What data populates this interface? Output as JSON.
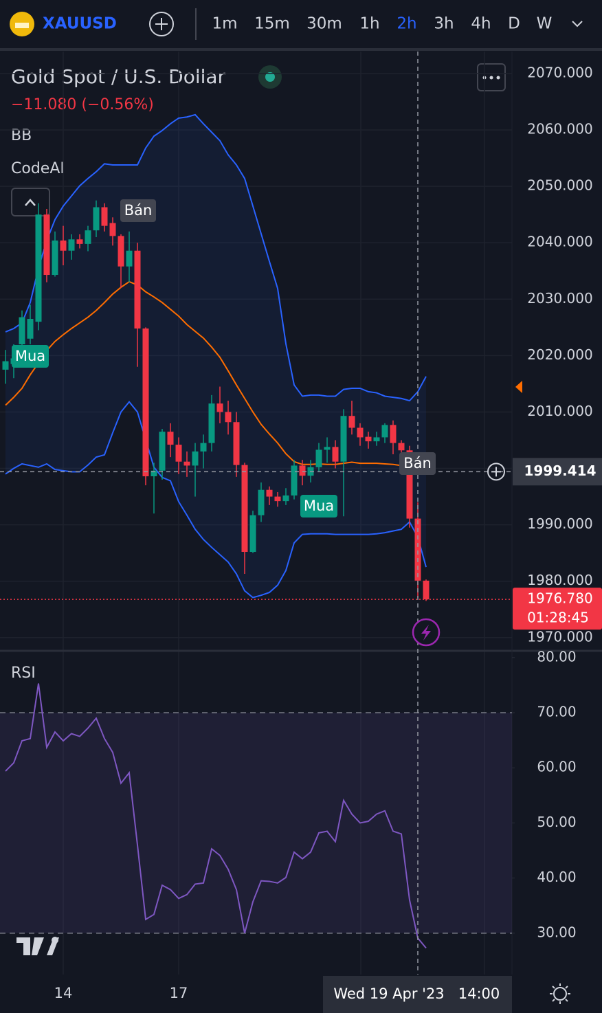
{
  "toolbar": {
    "symbol": "XAUUSD",
    "intervals": [
      "1m",
      "15m",
      "30m",
      "1h",
      "2h",
      "3h",
      "4h",
      "D",
      "W"
    ],
    "active_interval": "2h"
  },
  "legend": {
    "title": "Gold Spot / U.S. Dollar",
    "change": "−11.080 (−0.56%)",
    "indicators": [
      "BB",
      "CodeAI"
    ]
  },
  "signals": [
    "Bán",
    "Mua",
    "Mua",
    "Bán"
  ],
  "time_axis": {
    "ticks": [
      "14",
      "17"
    ],
    "crosshair_label": "Wed 19 Apr '23",
    "next_label": "14:00"
  },
  "chart_data": [
    {
      "type": "candlestick",
      "open": [
        2017.5,
        2018.5,
        2022.0,
        2023.0,
        2026.0,
        2045.0,
        2034.3,
        2040.4,
        2038.6,
        2040.6,
        2039.8,
        2042.2,
        2046.3,
        2043.5,
        2041.2,
        2035.8,
        2038.6,
        2024.8,
        1998.6,
        1999.6,
        2006.5,
        2004.2,
        2001.2,
        2000.5,
        2003.0,
        2004.5,
        2011.5,
        2010.0,
        2008.2,
        2000.6,
        1985.2,
        1991.7,
        1996.2,
        1995.0,
        1994.2,
        1995.2,
        2000.5,
        1998.7,
        2000.2,
        2003.3,
        2003.8,
        2001.2,
        2009.3,
        2007.2,
        2005.6,
        2004.8,
        2005.5,
        2007.7,
        2004.5,
        2003.2,
        1991.1,
        1980.1
      ],
      "high": [
        2021,
        2022,
        2028,
        2029,
        2047,
        2046,
        2042,
        2043,
        2041.5,
        2041.5,
        2043,
        2047.5,
        2047,
        2044.5,
        2041.5,
        2042,
        2040,
        2025,
        2001,
        2007,
        2008,
        2005.5,
        2003,
        2004.5,
        2006,
        2013,
        2014.5,
        2012,
        2010,
        2001,
        1992.5,
        1997.5,
        1996.8,
        1995.8,
        1996.5,
        2001.5,
        2001.5,
        2001.5,
        2004.5,
        2005.5,
        2005,
        2010.5,
        2012,
        2008,
        2006.5,
        2006.5,
        2008,
        2008.5,
        2005,
        2004,
        1994,
        1980.3
      ],
      "low": [
        2015,
        2016,
        2021,
        2022,
        2024.5,
        2033,
        2034,
        2036,
        2037,
        2039,
        2038.5,
        2041,
        2042,
        2039.5,
        2032,
        2033,
        2018,
        1997,
        1992,
        1998,
        2002,
        1999,
        1998.5,
        1995,
        2000,
        2003,
        2008,
        2006,
        1998.5,
        1981.3,
        1985,
        1990.5,
        1993.5,
        1993.2,
        1993.5,
        1994.5,
        1997,
        1997.5,
        1999.5,
        2001,
        2000,
        1991.5,
        2006,
        2004,
        2003.5,
        2004,
        2004.5,
        2002.5,
        2001.5,
        1989.5,
        1977,
        1976.5
      ],
      "close": [
        2019.0,
        2019.5,
        2026.8,
        2026.5,
        2045.0,
        2034.3,
        2040.4,
        2038.6,
        2040.6,
        2039.8,
        2042.2,
        2046.3,
        2043.0,
        2041.2,
        2035.8,
        2038.6,
        2024.8,
        1998.6,
        1999.6,
        2006.5,
        2004.2,
        2001.2,
        2000.5,
        2003.0,
        2004.5,
        2011.5,
        2010.0,
        2008.2,
        2000.6,
        1985.2,
        1991.7,
        1996.2,
        1995.0,
        1994.2,
        1995.2,
        2000.5,
        1998.7,
        2000.2,
        2003.3,
        2003.8,
        2001.2,
        2009.3,
        2007.2,
        2005.5,
        2004.8,
        2005.5,
        2007.7,
        2004.5,
        2003.2,
        1991.1,
        1980.1,
        1976.78
      ],
      "up_color": "#089981",
      "down_color": "#f23645",
      "overlays": [
        {
          "color": "#2962ff",
          "values": [
            2024.2,
            2024.8,
            2025.8,
            2029.4,
            2035.5,
            2040.4,
            2044.1,
            2046.5,
            2048.3,
            2050.1,
            2051.4,
            2052.6,
            2054.0,
            2053.8,
            2053.8,
            2053.8,
            2053.8,
            2056.8,
            2058.9,
            2059.9,
            2061.1,
            2062.1,
            2062.3,
            2062.7,
            2061.1,
            2059.6,
            2058.1,
            2055.6,
            2053.8,
            2051.4,
            2046.5,
            2041.6,
            2036.7,
            2031.9,
            2022.1,
            2014.8,
            2012.8,
            2013.0,
            2013.0,
            2012.8,
            2012.8,
            2014.0,
            2014.2,
            2014.2,
            2013.6,
            2013.4,
            2012.8,
            2012.6,
            2012.4,
            2012.0,
            2013.6,
            2016.3
          ]
        },
        {
          "color": "#ff6d00",
          "values": [
            2011.2,
            2012.6,
            2014.2,
            2016.6,
            2018.7,
            2020.9,
            2022.5,
            2023.7,
            2024.8,
            2025.8,
            2026.8,
            2028.0,
            2029.4,
            2030.9,
            2032.1,
            2033.1,
            2032.5,
            2031.3,
            2030.4,
            2029.4,
            2028.2,
            2027.0,
            2025.5,
            2024.3,
            2023.1,
            2021.5,
            2019.7,
            2017.3,
            2014.8,
            2012.4,
            2010.0,
            2007.8,
            2006.1,
            2004.5,
            2002.6,
            2001.2,
            2000.7,
            2000.7,
            2000.8,
            2000.7,
            2000.7,
            2000.9,
            2001.1,
            2000.9,
            2000.9,
            2000.9,
            2000.8,
            2000.7,
            2000.5,
            2000.5,
            2000.3,
            1999.7
          ]
        },
        {
          "color": "#2962ff",
          "values": [
            1999.0,
            2000.0,
            2000.8,
            2000.5,
            2000.2,
            2000.8,
            1999.8,
            1999.6,
            1999.4,
            1999.4,
            2000.6,
            2002.0,
            2002.4,
            2006.3,
            2010.0,
            2011.8,
            2010.0,
            2005.1,
            2000.2,
            1998.4,
            1997.8,
            1994.1,
            1991.7,
            1989.2,
            1987.4,
            1986.0,
            1984.7,
            1983.4,
            1981.3,
            1978.3,
            1977.1,
            1977.5,
            1978.0,
            1979.3,
            1981.9,
            1986.8,
            1988.3,
            1988.4,
            1988.4,
            1988.4,
            1988.3,
            1988.3,
            1988.3,
            1988.3,
            1988.3,
            1988.4,
            1988.6,
            1988.9,
            1989.2,
            1990.5,
            1987.8,
            1982.5
          ]
        }
      ],
      "band_fill": "rgba(41,98,255,0.08)",
      "ylim": [
        1967.9,
        2073.9
      ],
      "yticks": [
        {
          "value": 1970,
          "label": "1970.000"
        },
        {
          "value": 1980,
          "label": "1980.000"
        },
        {
          "value": 1990,
          "label": "1990.000"
        },
        {
          "value": 2000,
          "label": "2000.000"
        },
        {
          "value": 2010,
          "label": "2010.000"
        },
        {
          "value": 2020,
          "label": "2020.000"
        },
        {
          "value": 2030,
          "label": "2030.000"
        },
        {
          "value": 2040,
          "label": "2040.000"
        },
        {
          "value": 2050,
          "label": "2050.000"
        },
        {
          "value": 2060,
          "label": "2060.000"
        },
        {
          "value": 2070,
          "label": "2070.000"
        }
      ],
      "last_price": {
        "value": 1976.78,
        "label": "1976.780"
      },
      "countdown": "01:28:45",
      "crosshair_price": {
        "value": 1999.414,
        "label": "1999.414"
      },
      "grid": true
    },
    {
      "type": "line",
      "title": "RSI",
      "color": "#7e57c2",
      "values": [
        59.4,
        60.9,
        64.9,
        65.3,
        75.3,
        63.7,
        66.5,
        64.9,
        66.2,
        65.7,
        67.2,
        69.0,
        65.3,
        62.8,
        57.2,
        59.1,
        46.0,
        32.5,
        33.4,
        38.7,
        37.9,
        36.3,
        37.0,
        38.9,
        39.1,
        45.3,
        44.1,
        41.6,
        37.9,
        30.0,
        35.7,
        39.5,
        39.4,
        39.1,
        40.1,
        44.7,
        43.5,
        44.7,
        48.2,
        48.5,
        46.6,
        54.1,
        51.6,
        50.0,
        50.3,
        51.6,
        52.2,
        48.5,
        48.0,
        36.0,
        29.1,
        27.3
      ],
      "ylim": [
        22.5,
        81.1
      ],
      "yticks": [
        {
          "value": 30,
          "label": "30.00"
        },
        {
          "value": 40,
          "label": "40.00"
        },
        {
          "value": 50,
          "label": "50.00"
        },
        {
          "value": 60,
          "label": "60.00"
        },
        {
          "value": 70,
          "label": "70.00"
        },
        {
          "value": 80,
          "label": "80.00"
        }
      ],
      "band": [
        30,
        70
      ],
      "band_color": "rgba(126,87,194,0.12)"
    }
  ]
}
